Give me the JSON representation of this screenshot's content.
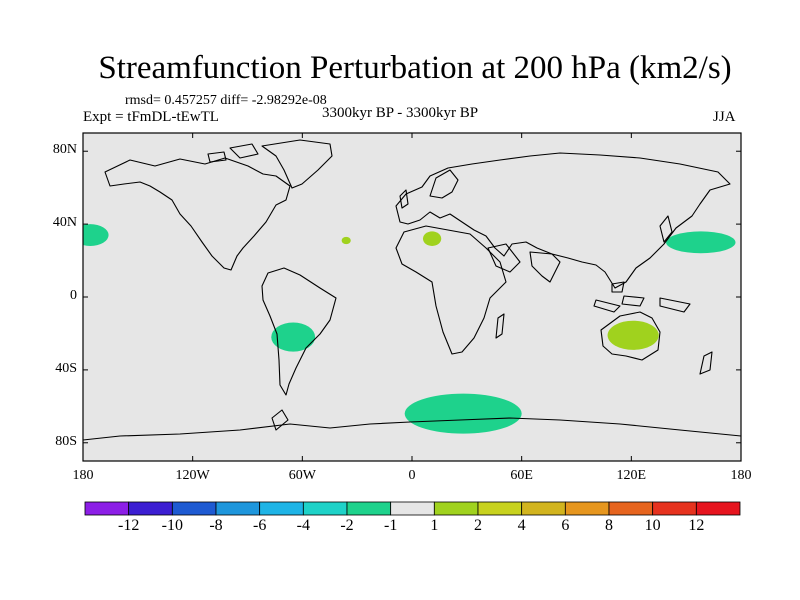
{
  "title": "Streamfunction Perturbation at 200 hPa (km2/s)",
  "stats_text": "rmsd= 0.457257 diff= -2.98292e-08",
  "experiment": "Expt = tFmDL-tEwTL",
  "period": "3300kyr BP - 3300kyr BP",
  "season": "JJA",
  "map": {
    "background_color": "#e6e6e6",
    "lat_range": [
      -90,
      90
    ],
    "lon_range": [
      -180,
      180
    ],
    "y_ticks": [
      {
        "value": 80,
        "label": "80N"
      },
      {
        "value": 40,
        "label": "40N"
      },
      {
        "value": 0,
        "label": "0"
      },
      {
        "value": -40,
        "label": "40S"
      },
      {
        "value": -80,
        "label": "80S"
      }
    ],
    "x_ticks": [
      {
        "value": -180,
        "label": "180"
      },
      {
        "value": -120,
        "label": "120W"
      },
      {
        "value": -60,
        "label": "60W"
      },
      {
        "value": 0,
        "label": "0"
      },
      {
        "value": 60,
        "label": "60E"
      },
      {
        "value": 120,
        "label": "120E"
      },
      {
        "value": 180,
        "label": "180"
      }
    ],
    "anomalies": [
      {
        "name": "north-pacific-east-negative",
        "lon": -176,
        "lat": 34,
        "rlon": 10,
        "rlat": 6,
        "level": -2,
        "color": "#1ed28c"
      },
      {
        "name": "atlantic-small-positive",
        "lon": -36,
        "lat": 31,
        "rlon": 2.5,
        "rlat": 2,
        "level": 2,
        "color": "#a0d21e"
      },
      {
        "name": "mediterranean-positive",
        "lon": 11,
        "lat": 32,
        "rlon": 5,
        "rlat": 4,
        "level": 2,
        "color": "#a0d21e"
      },
      {
        "name": "west-pacific-negative",
        "lon": 158,
        "lat": 30,
        "rlon": 19,
        "rlat": 6,
        "level": -2,
        "color": "#1ed28c"
      },
      {
        "name": "south-america-negative",
        "lon": -65,
        "lat": -22,
        "rlon": 12,
        "rlat": 8,
        "level": -2,
        "color": "#1ed28c"
      },
      {
        "name": "australia-positive",
        "lon": 121,
        "lat": -21,
        "rlon": 14,
        "rlat": 8,
        "level": 2,
        "color": "#a0d21e"
      },
      {
        "name": "southern-ocean-negative",
        "lon": 28,
        "lat": -64,
        "rlon": 32,
        "rlat": 11,
        "level": -2,
        "color": "#1ed28c"
      }
    ]
  },
  "colorbar": {
    "colors": [
      "#8c1ee6",
      "#3c1ed2",
      "#1e5ad2",
      "#1e96dc",
      "#1eb4e6",
      "#1ed2c8",
      "#1ed28c",
      "#e6e6e6",
      "#a0d21e",
      "#c8d21e",
      "#d2b41e",
      "#e6961e",
      "#e6641e",
      "#e6321e",
      "#e6141e"
    ],
    "labels": [
      "-12",
      "-10",
      "-8",
      "-6",
      "-4",
      "-2",
      "-1",
      "1",
      "2",
      "4",
      "6",
      "8",
      "10",
      "12"
    ]
  }
}
